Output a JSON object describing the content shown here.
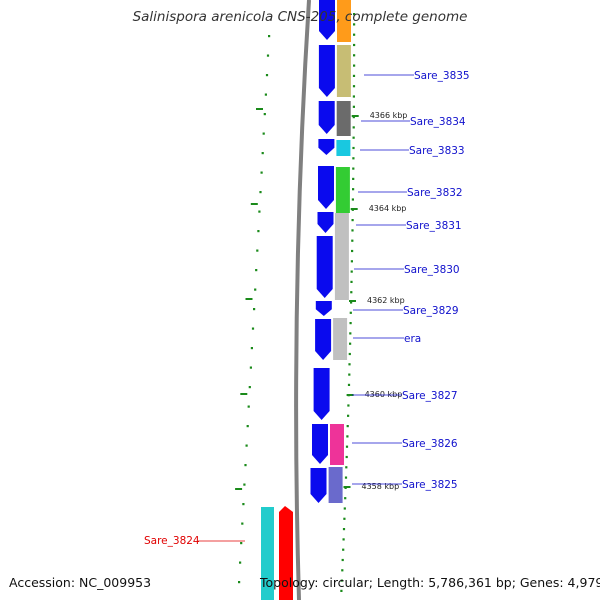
{
  "header": {
    "title": "Salinispora arenicola CNS-205, complete genome"
  },
  "footer": {
    "accession": "Accession: NC_009953",
    "topology": "Topology: circular; Length: 5,786,361 bp; Genes: 4,979"
  },
  "colors": {
    "forward_gene": "#0a0aee",
    "tick_green": "#1a8a1a",
    "backbone": "#808080",
    "label_blue": "#1010cc",
    "label_red": "#e00000"
  },
  "kbp_labels": [
    "4366 kbp",
    "4364 kbp",
    "4362 kbp",
    "4360 kbp",
    "4358 kbp"
  ],
  "gene_labels": [
    {
      "name": "Sare_3835",
      "color": "#1010cc"
    },
    {
      "name": "Sare_3834",
      "color": "#1010cc"
    },
    {
      "name": "Sare_3833",
      "color": "#1010cc"
    },
    {
      "name": "Sare_3832",
      "color": "#1010cc"
    },
    {
      "name": "Sare_3831",
      "color": "#1010cc"
    },
    {
      "name": "Sare_3830",
      "color": "#1010cc"
    },
    {
      "name": "Sare_3829",
      "color": "#1010cc"
    },
    {
      "name": "era",
      "color": "#1010cc"
    },
    {
      "name": "Sare_3827",
      "color": "#1010cc"
    },
    {
      "name": "Sare_3826",
      "color": "#1010cc"
    },
    {
      "name": "Sare_3825",
      "color": "#1010cc"
    },
    {
      "name": "Sare_3824",
      "color": "#e00000"
    }
  ],
  "cog_colors": {
    "orange": "#ff9b1a",
    "khaki": "#c7bd74",
    "darkgray": "#6b6b6b",
    "cyan": "#19c8e0",
    "green": "#33cc33",
    "lightgray": "#c0c0c0",
    "magenta": "#ee3399",
    "slate": "#6a6acc",
    "teal": "#22cccc",
    "red": "#ff0000"
  }
}
